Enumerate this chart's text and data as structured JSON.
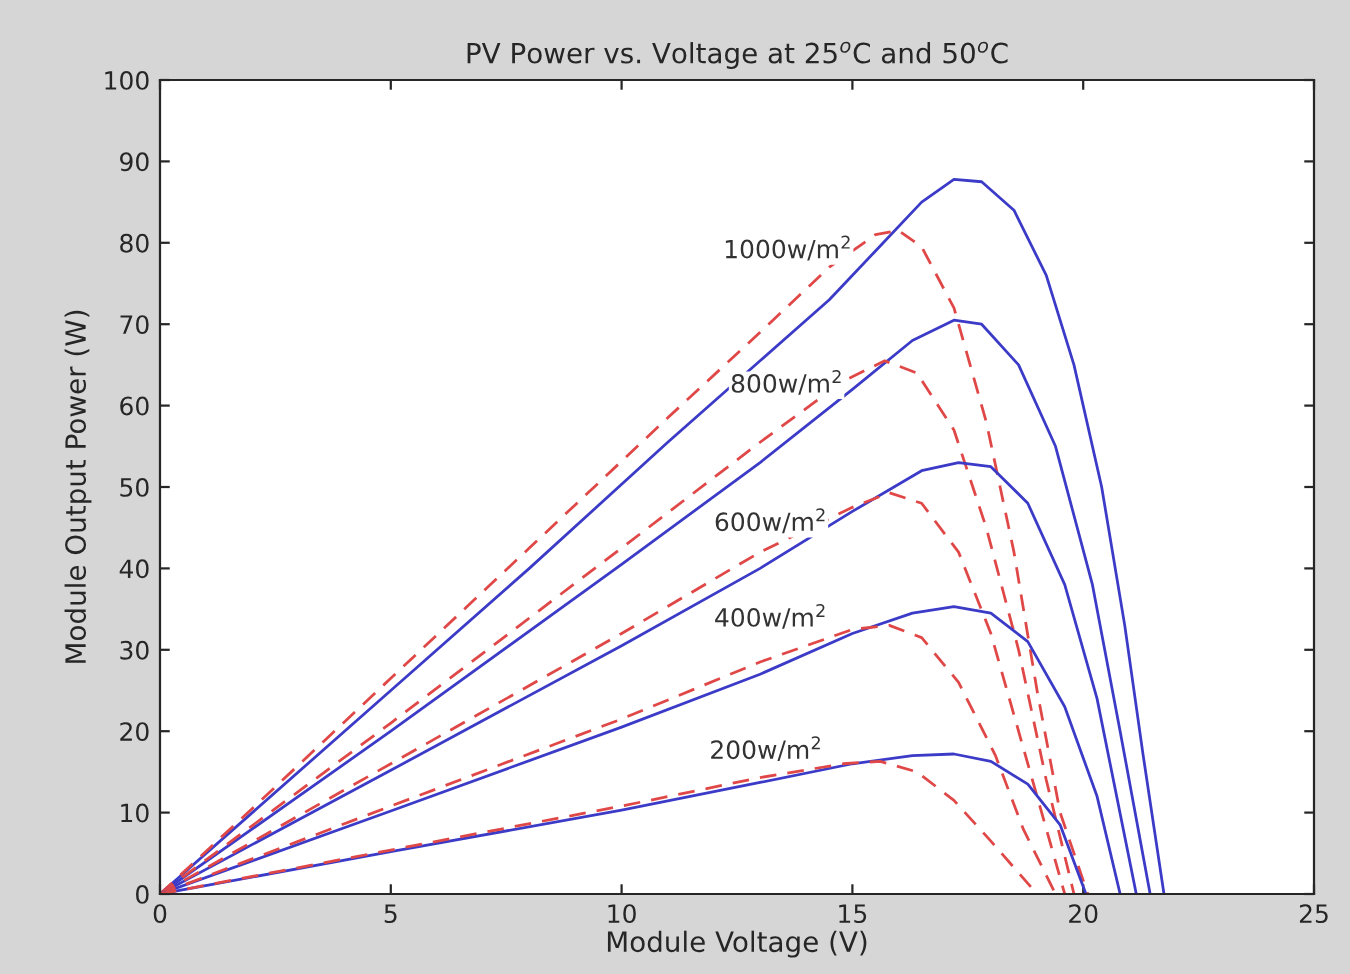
{
  "chart_data": {
    "type": "line",
    "title": "PV Power vs. Voltage at 25$^{o}$C and 50$^{o}$C",
    "xlabel": "Module Voltage (V)",
    "ylabel": "Module Output Power (W)",
    "xlim": [
      0,
      25
    ],
    "ylim": [
      0,
      100
    ],
    "xticks": [
      0,
      5,
      10,
      15,
      20,
      25
    ],
    "yticks": [
      0,
      10,
      20,
      30,
      40,
      50,
      60,
      70,
      80,
      90,
      100
    ],
    "grid": false,
    "legend": false,
    "series": [
      {
        "color": "#3b3bc8",
        "line_style": "solid",
        "x": [
          0,
          2,
          5,
          8,
          11,
          13,
          14.5,
          15.5,
          16.5,
          17.2,
          17.8,
          18.5,
          19.2,
          19.8,
          20.4,
          20.9,
          21.3,
          21.75
        ],
        "values": [
          0,
          10,
          25,
          40,
          55.5,
          65.5,
          73,
          79,
          85,
          87.8,
          87.5,
          84,
          76,
          65,
          50,
          33,
          17,
          0
        ]
      },
      {
        "color": "#e04848",
        "line_style": "dashed",
        "x": [
          0,
          2,
          5,
          8,
          11,
          13,
          14.5,
          15.5,
          16,
          16.5,
          17.2,
          17.9,
          18.5,
          19,
          19.5,
          20.1
        ],
        "values": [
          0,
          10.5,
          26.5,
          42.5,
          58.5,
          69,
          77,
          81,
          81.5,
          79.5,
          72,
          58,
          42,
          25,
          10,
          0
        ]
      },
      {
        "color": "#3b3bc8",
        "line_style": "solid",
        "x": [
          0,
          5,
          10,
          13,
          15,
          16.3,
          17.2,
          17.8,
          18.6,
          19.4,
          20.2,
          20.8,
          21.45
        ],
        "values": [
          0,
          20,
          40.5,
          53,
          62,
          68,
          70.5,
          70,
          65,
          55,
          38,
          20,
          0
        ]
      },
      {
        "color": "#e04848",
        "line_style": "dashed",
        "x": [
          0,
          5,
          10,
          13,
          14.8,
          15.7,
          16.4,
          17.2,
          17.9,
          18.6,
          19.2,
          19.8
        ],
        "values": [
          0,
          21,
          42.5,
          55.5,
          63,
          65.5,
          64,
          57,
          45,
          30,
          14,
          0
        ]
      },
      {
        "color": "#3b3bc8",
        "line_style": "solid",
        "x": [
          0,
          5,
          10,
          13,
          15,
          16.5,
          17.3,
          18,
          18.8,
          19.6,
          20.3,
          21.15
        ],
        "values": [
          0,
          15.2,
          30.5,
          40,
          47,
          52,
          53,
          52.5,
          48,
          38,
          24,
          0
        ]
      },
      {
        "color": "#e04848",
        "line_style": "dashed",
        "x": [
          0,
          5,
          10,
          13,
          15,
          15.8,
          16.5,
          17.3,
          18,
          18.7,
          19.6
        ],
        "values": [
          0,
          16,
          32,
          42,
          47.5,
          49.3,
          48,
          42,
          32,
          18,
          0
        ]
      },
      {
        "color": "#3b3bc8",
        "line_style": "solid",
        "x": [
          0,
          5,
          10,
          13,
          15,
          16.3,
          17.2,
          18,
          18.8,
          19.6,
          20.3,
          20.8
        ],
        "values": [
          0,
          10.2,
          20.5,
          27,
          32,
          34.5,
          35.3,
          34.5,
          31,
          23,
          12,
          0
        ]
      },
      {
        "color": "#e04848",
        "line_style": "dashed",
        "x": [
          0,
          5,
          10,
          13,
          15,
          15.8,
          16.5,
          17.3,
          18.1,
          18.7,
          19.4
        ],
        "values": [
          0,
          10.8,
          21.5,
          28.5,
          32.5,
          33,
          31.5,
          26,
          17,
          8,
          0
        ]
      },
      {
        "color": "#3b3bc8",
        "line_style": "solid",
        "x": [
          0,
          5,
          10,
          13,
          15,
          16.3,
          17.2,
          18,
          18.8,
          19.5,
          20.06
        ],
        "values": [
          0,
          5.2,
          10.3,
          13.7,
          16,
          17,
          17.2,
          16.3,
          13.5,
          8.5,
          0
        ]
      },
      {
        "color": "#e04848",
        "line_style": "dashed",
        "x": [
          0,
          5,
          10,
          13,
          14.8,
          15.6,
          16.4,
          17.2,
          18,
          19
        ],
        "values": [
          0,
          5.4,
          10.8,
          14.3,
          16,
          16.3,
          15,
          11.5,
          6.5,
          0
        ]
      }
    ],
    "annotations": [
      "1000w/m$^{2}$",
      "800w/m$^{2}$",
      "600w/m$^{2}$",
      "400w/m$^{2}$",
      "200w/m$^{2}$"
    ]
  }
}
